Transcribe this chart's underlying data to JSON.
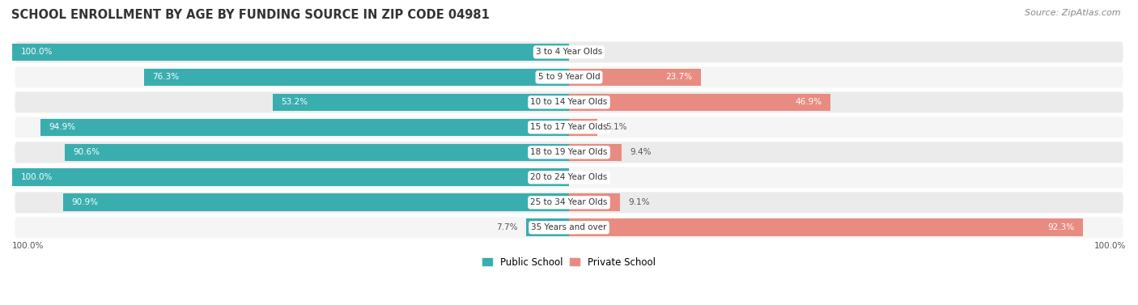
{
  "title": "SCHOOL ENROLLMENT BY AGE BY FUNDING SOURCE IN ZIP CODE 04981",
  "source": "Source: ZipAtlas.com",
  "categories": [
    "3 to 4 Year Olds",
    "5 to 9 Year Old",
    "10 to 14 Year Olds",
    "15 to 17 Year Olds",
    "18 to 19 Year Olds",
    "20 to 24 Year Olds",
    "25 to 34 Year Olds",
    "35 Years and over"
  ],
  "public_pct": [
    100.0,
    76.3,
    53.2,
    94.9,
    90.6,
    100.0,
    90.9,
    7.7
  ],
  "private_pct": [
    0.0,
    23.7,
    46.9,
    5.1,
    9.4,
    0.0,
    9.1,
    92.3
  ],
  "public_color": "#3AAEAE",
  "private_color": "#E88C82",
  "bg_row_even": "#EBEBEB",
  "bg_row_odd": "#F5F5F5",
  "title_fontsize": 10.5,
  "source_fontsize": 8,
  "bar_label_fontsize": 7.5,
  "category_fontsize": 7.5,
  "legend_fontsize": 8.5,
  "axis_label_fontsize": 7.5,
  "inside_label_threshold": 20
}
